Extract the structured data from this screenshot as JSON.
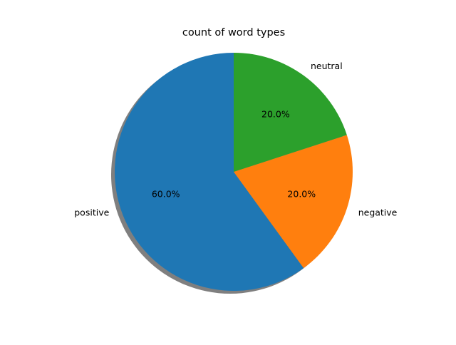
{
  "chart_data": {
    "type": "pie",
    "title": "count of word types",
    "categories": [
      "positive",
      "negative",
      "neutral"
    ],
    "values": [
      60,
      20,
      20
    ],
    "percent_labels": [
      "60.0%",
      "20.0%",
      "20.0%"
    ],
    "colors": [
      "#1f77b4",
      "#ff7f0e",
      "#2ca02c"
    ],
    "start_angle_deg": 90,
    "direction": "counterclockwise",
    "shadow": true,
    "shadow_color": "#7f7f7f"
  }
}
